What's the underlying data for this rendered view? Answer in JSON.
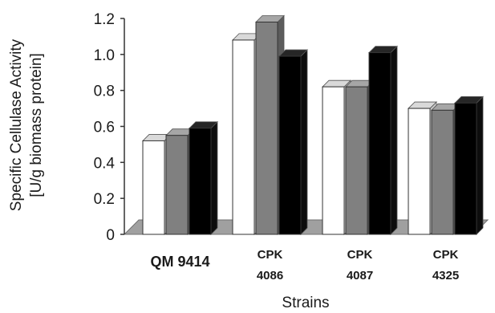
{
  "chart_data": {
    "type": "bar",
    "categories": [
      [
        "QM 9414"
      ],
      [
        "CPK",
        "4086"
      ],
      [
        "CPK",
        "4087"
      ],
      [
        "CPK",
        "4325"
      ]
    ],
    "series": [
      {
        "color": "#ffffff",
        "top_color": "#d9d9d9",
        "side_color": "#c8c8c8",
        "values": [
          0.52,
          1.08,
          0.82,
          0.7
        ]
      },
      {
        "color": "#808080",
        "top_color": "#a6a6a6",
        "side_color": "#5c5c5c",
        "values": [
          0.55,
          1.18,
          0.82,
          0.69
        ]
      },
      {
        "color": "#000000",
        "top_color": "#262626",
        "side_color": "#0d0d0d",
        "values": [
          0.59,
          0.99,
          1.01,
          0.73
        ]
      }
    ],
    "ylim": [
      0,
      1.2
    ],
    "yticks": [
      "0",
      "0.2",
      "0.4",
      "0.6",
      "0.8",
      "1.0",
      "1.2"
    ],
    "ylabel_lines": [
      "Specific Cellulase Activity",
      "[U/g biomass protein]"
    ],
    "xlabel": "Strains",
    "grid": false,
    "legend": "none",
    "style": "3d"
  }
}
